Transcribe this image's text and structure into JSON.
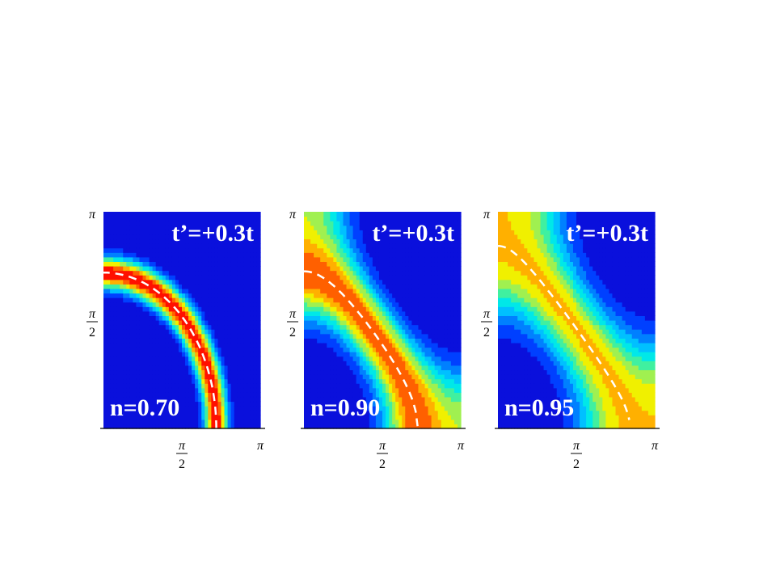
{
  "chart_data": [
    {
      "type": "heatmap",
      "annotations": {
        "top_right": "t’=+0.3t",
        "bottom_left": "n=0.70"
      },
      "x_ticks": [
        {
          "value": "π/2",
          "num": "π",
          "den": "2"
        },
        {
          "value": "π",
          "num": "π",
          "den": ""
        }
      ],
      "y_ticks": [
        {
          "value": "π/2",
          "num": "π",
          "den": "2"
        },
        {
          "value": "π",
          "num": "π",
          "den": ""
        }
      ],
      "xlim": [
        0,
        3.1416
      ],
      "ylim": [
        0,
        3.1416
      ],
      "grid": false,
      "band": {
        "shape": "arc",
        "radius": 2.26,
        "width": 0.16,
        "peak": 1.0
      },
      "fermi_surface_dashed": true
    },
    {
      "type": "heatmap",
      "annotations": {
        "top_right": "t’=+0.3t",
        "bottom_left": "n=0.90"
      },
      "x_ticks": [
        {
          "value": "π/2",
          "num": "π",
          "den": "2"
        },
        {
          "value": "π",
          "num": "π",
          "den": ""
        }
      ],
      "y_ticks": [
        {
          "value": "π/2",
          "num": "π",
          "den": "2"
        },
        {
          "value": "π",
          "num": "π",
          "den": ""
        }
      ],
      "xlim": [
        0,
        3.1416
      ],
      "ylim": [
        0,
        3.1416
      ],
      "grid": false,
      "band": {
        "shape": "curve",
        "c0": 0.35,
        "width": 0.42,
        "peak": 0.9
      },
      "fermi_surface_dashed": true
    },
    {
      "type": "heatmap",
      "annotations": {
        "top_right": "t’=+0.3t",
        "bottom_left": "n=0.95"
      },
      "x_ticks": [
        {
          "value": "π/2",
          "num": "π",
          "den": "2"
        },
        {
          "value": "π",
          "num": "π",
          "den": ""
        }
      ],
      "y_ticks": [
        {
          "value": "π/2",
          "num": "π",
          "den": "2"
        },
        {
          "value": "π",
          "num": "π",
          "den": ""
        }
      ],
      "xlim": [
        0,
        3.1416
      ],
      "ylim": [
        0,
        3.1416
      ],
      "grid": false,
      "band": {
        "shape": "curve",
        "c0": 0.12,
        "width": 0.55,
        "peak": 0.75
      },
      "fermi_surface_dashed": true
    }
  ],
  "colors": {
    "background": "#ffffff",
    "annotation_text": "#ffffff",
    "fermi_surface": "#ffffff",
    "axis": "#000000",
    "colormap": [
      "#0a10dc",
      "#0040ff",
      "#0080ff",
      "#00c0ff",
      "#00e8e8",
      "#40f0a0",
      "#a0f050",
      "#f0f000",
      "#ffb000",
      "#ff6000",
      "#ff1000"
    ]
  }
}
